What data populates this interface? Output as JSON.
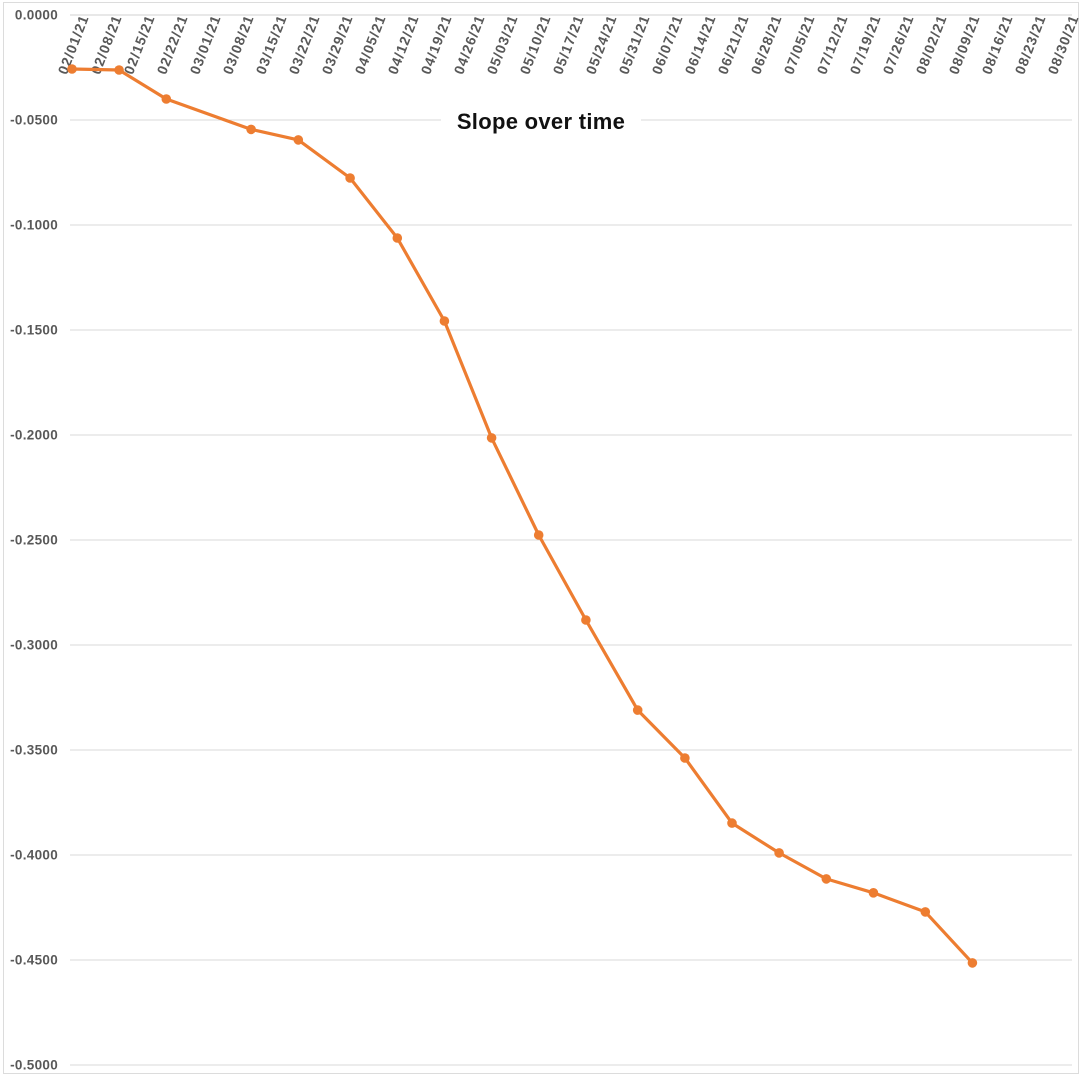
{
  "chart_data": {
    "type": "line",
    "title": "Slope over time",
    "legend": "none",
    "grid": true,
    "x_axis": {
      "labels": [
        "02/01/21",
        "02/08/21",
        "02/15/21",
        "02/22/21",
        "03/01/21",
        "03/08/21",
        "03/15/21",
        "03/22/21",
        "03/29/21",
        "04/05/21",
        "04/12/21",
        "04/19/21",
        "04/26/21",
        "05/03/21",
        "05/10/21",
        "05/17/21",
        "05/24/21",
        "05/31/21",
        "06/07/21",
        "06/14/21",
        "06/21/21",
        "06/28/21",
        "07/05/21",
        "07/12/21",
        "07/19/21",
        "07/26/21",
        "08/02/21",
        "08/09/21",
        "08/16/21",
        "08/23/21",
        "08/30/21"
      ],
      "tick_interval_days": 7
    },
    "y_axis": {
      "labels": [
        "0.0000",
        "-0.0500",
        "-0.1000",
        "-0.1500",
        "-0.2000",
        "-0.2500",
        "-0.3000",
        "-0.3500",
        "-0.4000",
        "-0.4500",
        "-0.5000"
      ],
      "min": -0.5,
      "max": 0,
      "step": -0.05
    },
    "series": [
      {
        "name": "Slope",
        "color": "#ED7D31",
        "marker": "circle",
        "points": [
          {
            "date": "02/01/21",
            "value": -0.0257
          },
          {
            "date": "02/11/21",
            "value": -0.0262
          },
          {
            "date": "02/21/21",
            "value": -0.04
          },
          {
            "date": "03/11/21",
            "value": -0.0545
          },
          {
            "date": "03/21/21",
            "value": -0.0595
          },
          {
            "date": "04/01/21",
            "value": -0.0776
          },
          {
            "date": "04/11/21",
            "value": -0.1062
          },
          {
            "date": "04/21/21",
            "value": -0.1457
          },
          {
            "date": "05/01/21",
            "value": -0.2014
          },
          {
            "date": "05/11/21",
            "value": -0.2476
          },
          {
            "date": "05/21/21",
            "value": -0.2881
          },
          {
            "date": "06/01/21",
            "value": -0.331
          },
          {
            "date": "06/11/21",
            "value": -0.3538
          },
          {
            "date": "06/21/21",
            "value": -0.3848
          },
          {
            "date": "07/01/21",
            "value": -0.399
          },
          {
            "date": "07/11/21",
            "value": -0.4114
          },
          {
            "date": "07/21/21",
            "value": -0.418
          },
          {
            "date": "08/01/21",
            "value": -0.4271
          },
          {
            "date": "08/11/21",
            "value": -0.4514
          }
        ]
      }
    ],
    "colors": {
      "line": "#ED7D31",
      "axis_text": "#595959",
      "title_text": "#111111",
      "gridline": "#D9D9D9"
    }
  }
}
